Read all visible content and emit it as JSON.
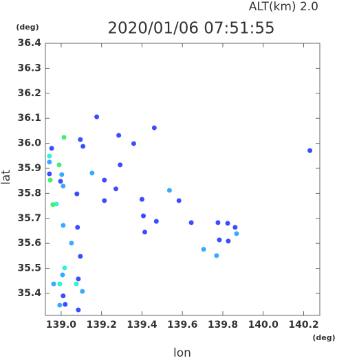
{
  "chart_data": {
    "type": "scatter",
    "title": "2020/01/06 07:51:55",
    "subtitle": "ALT(km) 2.0",
    "x_label": "lon",
    "y_label": "lat",
    "x_unit": "(deg)",
    "y_unit": "(deg)",
    "xlim": [
      138.922,
      140.28
    ],
    "ylim": [
      35.312,
      36.4
    ],
    "xticks": [
      {
        "value": 139.0,
        "label": "139.0"
      },
      139.2,
      139.4,
      139.6,
      139.8,
      {
        "value": 140.0,
        "label": "140.0"
      },
      140.2
    ],
    "yticks": [
      35.4,
      35.5,
      35.6,
      35.7,
      35.8,
      35.9,
      {
        "value": 36.0,
        "label": "36.0"
      },
      36.1,
      36.2,
      36.3,
      36.4
    ],
    "marker_size": 7,
    "series": [
      {
        "color": "#3a4dff",
        "x": [
          139.176,
          139.108,
          139.095,
          139.285,
          139.461,
          139.359,
          139.292,
          139.214,
          139.271,
          139.214,
          139.078,
          139.4,
          139.407,
          139.471,
          139.414,
          139.583,
          139.644,
          139.776,
          139.824,
          139.783,
          139.827,
          139.861,
          139.081,
          139.095,
          139.085,
          139.01,
          139.02,
          139.085,
          140.231,
          138.953,
          138.997,
          138.942
        ],
        "y": [
          36.106,
          35.988,
          36.015,
          36.032,
          36.062,
          35.999,
          35.914,
          35.853,
          35.818,
          35.771,
          35.798,
          35.776,
          35.71,
          35.688,
          35.645,
          35.771,
          35.683,
          35.683,
          35.68,
          35.614,
          35.609,
          35.664,
          35.664,
          35.548,
          35.458,
          35.39,
          35.356,
          35.334,
          35.971,
          35.98,
          35.848,
          35.878
        ]
      },
      {
        "color": "#3aaaff",
        "x": [
          139.003,
          139.01,
          139.01,
          139.051,
          139.105,
          138.963,
          139.007,
          138.993,
          139.536,
          139.705,
          139.769,
          139.868,
          139.153,
          138.942
        ],
        "y": [
          35.875,
          35.829,
          35.672,
          35.601,
          35.408,
          35.438,
          35.474,
          35.353,
          35.812,
          35.576,
          35.551,
          35.639,
          35.881,
          35.925
        ]
      },
      {
        "color": "#33f0d8",
        "x": [
          138.942,
          139.017,
          139.075,
          138.976,
          138.993
        ],
        "y": [
          35.949,
          35.502,
          35.438,
          35.757,
          35.438
        ]
      },
      {
        "color": "#44f06a",
        "x": [
          139.014,
          138.99,
          138.959,
          138.946
        ],
        "y": [
          36.024,
          35.914,
          35.755,
          35.853
        ]
      }
    ]
  }
}
